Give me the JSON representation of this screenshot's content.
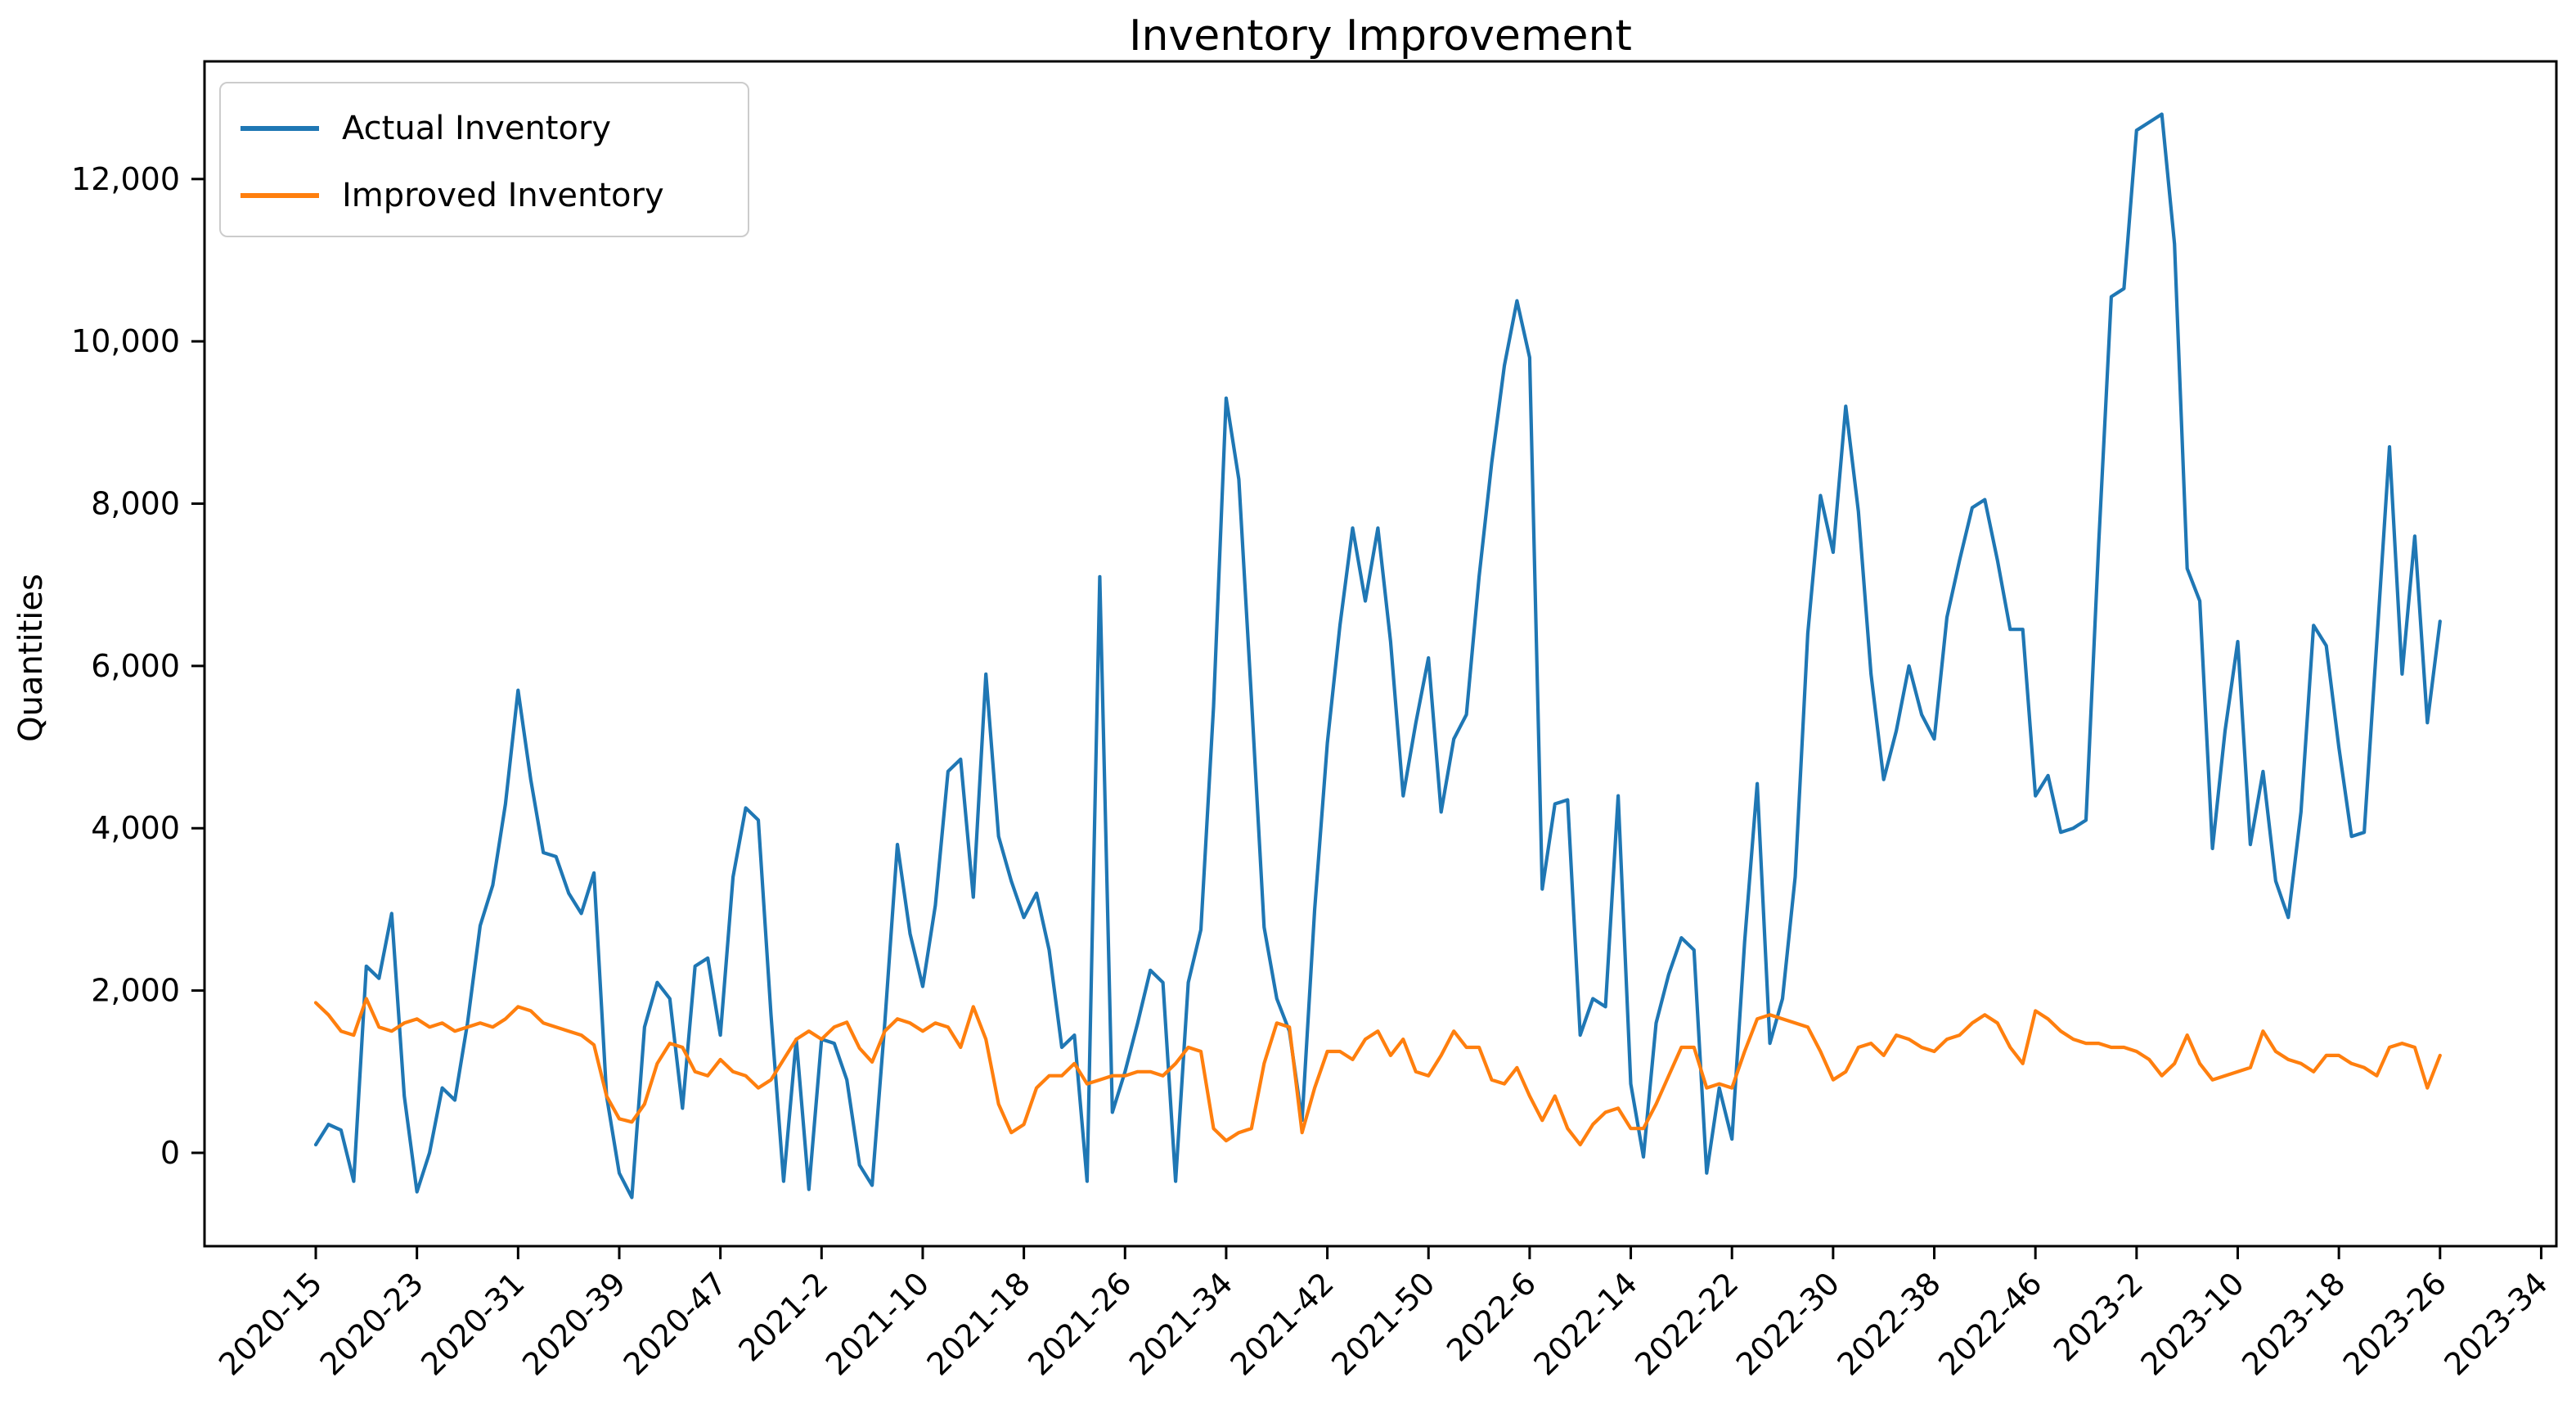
{
  "chart_title": "Inventory Improvement",
  "y_axis_label": "Quantities",
  "legend": {
    "items": [
      {
        "label": "Actual Inventory",
        "color": "#1f77b4"
      },
      {
        "label": "Improved Inventory",
        "color": "#ff7f0e"
      }
    ]
  },
  "chart_data": {
    "type": "line",
    "title": "Inventory Improvement",
    "xlabel": "",
    "ylabel": "Quantities",
    "grid": false,
    "legend_position": "upper left",
    "background": "#ffffff",
    "axis_color": "#000000",
    "ylim": [
      -1150,
      13450
    ],
    "xlim_index": [
      -8.8,
      177.2
    ],
    "yticks": [
      0,
      2000,
      4000,
      6000,
      8000,
      10000,
      12000
    ],
    "ytick_labels": [
      "0",
      "2,000",
      "4,000",
      "6,000",
      "8,000",
      "10,000",
      "12,000"
    ],
    "xtick_step": 8,
    "xtick_labels": [
      "2020-15",
      "2020-23",
      "2020-31",
      "2020-39",
      "2020-47",
      "2021-2",
      "2021-10",
      "2021-18",
      "2021-26",
      "2021-34",
      "2021-42",
      "2021-50",
      "2022-6",
      "2022-14",
      "2022-22",
      "2022-30",
      "2022-38",
      "2022-46",
      "2023-2",
      "2023-10",
      "2023-18",
      "2023-26",
      "2023-34"
    ],
    "x": [
      "2020-15",
      "2020-16",
      "2020-17",
      "2020-18",
      "2020-19",
      "2020-20",
      "2020-21",
      "2020-22",
      "2020-23",
      "2020-24",
      "2020-25",
      "2020-26",
      "2020-27",
      "2020-28",
      "2020-29",
      "2020-30",
      "2020-31",
      "2020-32",
      "2020-33",
      "2020-34",
      "2020-35",
      "2020-36",
      "2020-37",
      "2020-38",
      "2020-39",
      "2020-40",
      "2020-41",
      "2020-42",
      "2020-43",
      "2020-44",
      "2020-45",
      "2020-46",
      "2020-47",
      "2020-48",
      "2020-49",
      "2020-50",
      "2020-51",
      "2020-52",
      "2020-53",
      "2021-1",
      "2021-2",
      "2021-3",
      "2021-4",
      "2021-5",
      "2021-6",
      "2021-7",
      "2021-8",
      "2021-9",
      "2021-10",
      "2021-11",
      "2021-12",
      "2021-13",
      "2021-14",
      "2021-15",
      "2021-16",
      "2021-17",
      "2021-18",
      "2021-19",
      "2021-20",
      "2021-21",
      "2021-22",
      "2021-23",
      "2021-24",
      "2021-25",
      "2021-26",
      "2021-27",
      "2021-28",
      "2021-29",
      "2021-30",
      "2021-31",
      "2021-32",
      "2021-33",
      "2021-34",
      "2021-35",
      "2021-36",
      "2021-37",
      "2021-38",
      "2021-39",
      "2021-40",
      "2021-41",
      "2021-42",
      "2021-43",
      "2021-44",
      "2021-45",
      "2021-46",
      "2021-47",
      "2021-48",
      "2021-49",
      "2021-50",
      "2021-51",
      "2021-52",
      "2022-1",
      "2022-2",
      "2022-3",
      "2022-4",
      "2022-5",
      "2022-6",
      "2022-7",
      "2022-8",
      "2022-9",
      "2022-10",
      "2022-11",
      "2022-12",
      "2022-13",
      "2022-14",
      "2022-15",
      "2022-16",
      "2022-17",
      "2022-18",
      "2022-19",
      "2022-20",
      "2022-21",
      "2022-22",
      "2022-23",
      "2022-24",
      "2022-25",
      "2022-26",
      "2022-27",
      "2022-28",
      "2022-29",
      "2022-30",
      "2022-31",
      "2022-32",
      "2022-33",
      "2022-34",
      "2022-35",
      "2022-36",
      "2022-37",
      "2022-38",
      "2022-39",
      "2022-40",
      "2022-41",
      "2022-42",
      "2022-43",
      "2022-44",
      "2022-45",
      "2022-46",
      "2022-47",
      "2022-48",
      "2022-49",
      "2022-50",
      "2022-51",
      "2022-52",
      "2023-1",
      "2023-2",
      "2023-3",
      "2023-4",
      "2023-5",
      "2023-6",
      "2023-7",
      "2023-8",
      "2023-9",
      "2023-10",
      "2023-11",
      "2023-12",
      "2023-13",
      "2023-14",
      "2023-15",
      "2023-16",
      "2023-17",
      "2023-18",
      "2023-19",
      "2023-20",
      "2023-21",
      "2023-22",
      "2023-23",
      "2023-24",
      "2023-25",
      "2023-26"
    ],
    "series": [
      {
        "name": "Actual Inventory",
        "color": "#1f77b4",
        "values": [
          100,
          350,
          280,
          -350,
          2300,
          2150,
          2950,
          700,
          -480,
          0,
          800,
          650,
          1600,
          2800,
          3300,
          4300,
          5700,
          4600,
          3700,
          3650,
          3200,
          2950,
          3450,
          700,
          -250,
          -550,
          1550,
          2100,
          1900,
          550,
          2300,
          2400,
          1450,
          3400,
          4250,
          4100,
          1700,
          -350,
          1400,
          -450,
          1400,
          1350,
          900,
          -150,
          -400,
          1600,
          3800,
          2700,
          2050,
          3050,
          4700,
          4850,
          3150,
          5900,
          3900,
          3350,
          2900,
          3200,
          2500,
          1300,
          1450,
          -350,
          7100,
          500,
          1000,
          1600,
          2250,
          2100,
          -350,
          2100,
          2750,
          5500,
          9300,
          8300,
          5600,
          2780,
          1900,
          1500,
          400,
          3000,
          5050,
          6500,
          7700,
          6800,
          7700,
          6300,
          4400,
          5300,
          6100,
          4200,
          5100,
          5400,
          7100,
          8500,
          9700,
          10500,
          9800,
          3250,
          4300,
          4350,
          1450,
          1900,
          1800,
          4400,
          850,
          -50,
          1600,
          2200,
          2650,
          2500,
          -250,
          800,
          170,
          2600,
          4550,
          1350,
          1900,
          3400,
          6400,
          8100,
          7400,
          9200,
          7900,
          5900,
          4600,
          5200,
          6000,
          5400,
          5100,
          6600,
          7300,
          7950,
          8050,
          7300,
          6450,
          6450,
          4400,
          4650,
          3950,
          4000,
          4100,
          7500,
          10550,
          10650,
          12600,
          12700,
          12800,
          11200,
          7200,
          6800,
          3750,
          5200,
          6300,
          3800,
          4700,
          3350,
          2900,
          4200,
          6500,
          6250,
          5000,
          3900,
          3950,
          6300,
          8700,
          5900,
          7600,
          5300,
          6550
        ]
      },
      {
        "name": "Improved Inventory",
        "color": "#ff7f0e",
        "values": [
          1850,
          1700,
          1500,
          1450,
          1900,
          1550,
          1500,
          1600,
          1650,
          1550,
          1600,
          1500,
          1550,
          1600,
          1550,
          1650,
          1800,
          1750,
          1600,
          1550,
          1500,
          1450,
          1330,
          700,
          420,
          380,
          600,
          1100,
          1350,
          1300,
          1000,
          950,
          1150,
          1000,
          950,
          800,
          900,
          1150,
          1400,
          1500,
          1400,
          1550,
          1610,
          1290,
          1120,
          1500,
          1650,
          1600,
          1500,
          1600,
          1550,
          1300,
          1800,
          1400,
          600,
          250,
          350,
          800,
          950,
          950,
          1100,
          850,
          900,
          950,
          950,
          1000,
          1000,
          950,
          1100,
          1300,
          1250,
          300,
          150,
          250,
          300,
          1100,
          1600,
          1550,
          250,
          800,
          1250,
          1250,
          1150,
          1400,
          1500,
          1200,
          1400,
          1000,
          950,
          1200,
          1500,
          1300,
          1300,
          900,
          850,
          1050,
          700,
          400,
          700,
          300,
          100,
          350,
          500,
          550,
          300,
          300,
          600,
          950,
          1300,
          1300,
          800,
          850,
          800,
          1250,
          1650,
          1700,
          1650,
          1600,
          1550,
          1250,
          900,
          1000,
          1300,
          1350,
          1200,
          1450,
          1400,
          1300,
          1250,
          1400,
          1450,
          1600,
          1700,
          1600,
          1300,
          1100,
          1750,
          1650,
          1500,
          1400,
          1350,
          1350,
          1300,
          1300,
          1250,
          1150,
          950,
          1100,
          1450,
          1100,
          900,
          950,
          1000,
          1050,
          1500,
          1250,
          1150,
          1100,
          1000,
          1200,
          1200,
          1100,
          1050,
          950,
          1300,
          1350,
          1300,
          800,
          1200
        ]
      }
    ]
  }
}
